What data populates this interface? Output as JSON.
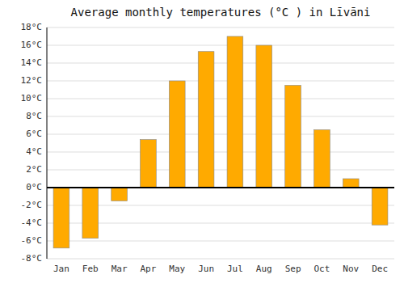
{
  "chart_data": {
    "type": "bar",
    "title": "Average monthly temperatures (°C ) in Līvāni",
    "categories": [
      "Jan",
      "Feb",
      "Mar",
      "Apr",
      "May",
      "Jun",
      "Jul",
      "Aug",
      "Sep",
      "Oct",
      "Nov",
      "Dec"
    ],
    "values": [
      -6.8,
      -5.7,
      -1.5,
      5.4,
      12.0,
      15.3,
      17.0,
      16.0,
      11.5,
      6.5,
      1.0,
      -4.2
    ],
    "color": "#FFAA00",
    "ylim": [
      -8,
      18
    ],
    "yticks": [
      {
        "value": -8,
        "label": "-8°C"
      },
      {
        "value": -6,
        "label": "-6°C"
      },
      {
        "value": -4,
        "label": "-4°C"
      },
      {
        "value": -2,
        "label": "-2°C"
      },
      {
        "value": 0,
        "label": "0°C"
      },
      {
        "value": 2,
        "label": "2°C"
      },
      {
        "value": 4,
        "label": "4°C"
      },
      {
        "value": 6,
        "label": "6°C"
      },
      {
        "value": 8,
        "label": "8°C"
      },
      {
        "value": 10,
        "label": "10°C"
      },
      {
        "value": 12,
        "label": "12°C"
      },
      {
        "value": 14,
        "label": "14°C"
      },
      {
        "value": 16,
        "label": "16°C"
      },
      {
        "value": 18,
        "label": "18°C"
      }
    ],
    "grid": true
  }
}
